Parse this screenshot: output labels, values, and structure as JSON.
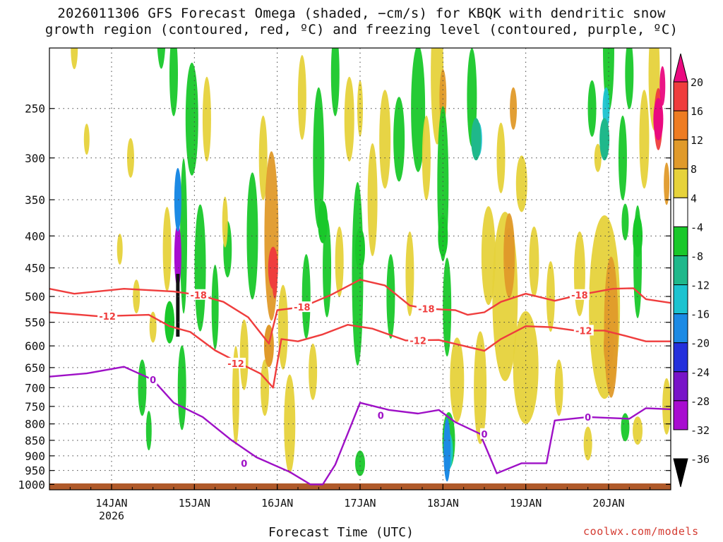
{
  "header": {
    "title_line1": "2026011306 GFS Forecast Omega (shaded, −cm/s) for KBQK with dendritic snow",
    "title_line2": "growth region (contoured, red, ºC) and freezing level (contoured, purple, ºC)"
  },
  "footer": {
    "x_axis_title": "Forecast Time (UTC)",
    "credit": "coolwx.com/models"
  },
  "chart_data": {
    "type": "heatmap",
    "x_axis": {
      "label": "Forecast Time (UTC)",
      "ticks": [
        {
          "value": 0.75,
          "label": "14JAN",
          "sublabel": "2026"
        },
        {
          "value": 1.75,
          "label": "15JAN"
        },
        {
          "value": 2.75,
          "label": "16JAN"
        },
        {
          "value": 3.75,
          "label": "17JAN"
        },
        {
          "value": 4.75,
          "label": "18JAN"
        },
        {
          "value": 5.75,
          "label": "19JAN"
        },
        {
          "value": 6.75,
          "label": "20JAN"
        }
      ],
      "range": [
        0,
        7.5
      ],
      "units": "days since 2026011306"
    },
    "y_axis": {
      "label": "",
      "scale": "log",
      "range": [
        200,
        1020
      ],
      "ticks": [
        250,
        300,
        350,
        400,
        450,
        500,
        550,
        600,
        650,
        700,
        750,
        800,
        850,
        900,
        950,
        1000
      ]
    },
    "grid": true,
    "colorbar": {
      "ticks": [
        "20",
        "16",
        "12",
        "8",
        "4",
        "-4",
        "-8",
        "-12",
        "-16",
        "-20",
        "-24",
        "-28",
        "-32",
        "-36"
      ],
      "bands": [
        {
          "color": "#ea0a80"
        },
        {
          "color": "#ef3d3d"
        },
        {
          "color": "#ee7c22"
        },
        {
          "color": "#e09a2a"
        },
        {
          "color": "#e6d23b"
        },
        {
          "color": "#ffffff"
        },
        {
          "color": "#19c82a"
        },
        {
          "color": "#1fb88b"
        },
        {
          "color": "#1cc3d0"
        },
        {
          "color": "#1c8ae4"
        },
        {
          "color": "#2430dc"
        },
        {
          "color": "#7814c8"
        },
        {
          "color": "#a80cd0"
        },
        {
          "color": "#a8a8a8"
        }
      ]
    },
    "shaded_omega": [
      {
        "x": 0.1,
        "p": 1000,
        "value": 0
      },
      {
        "x": 1.55,
        "p": 430,
        "value": -32
      },
      {
        "x": 1.55,
        "p": 350,
        "value": -20
      },
      {
        "x": 1.45,
        "p": 550,
        "value": -8
      },
      {
        "x": 2.7,
        "p": 450,
        "value": 16
      },
      {
        "x": 2.65,
        "p": 600,
        "value": 8
      },
      {
        "x": 3.3,
        "p": 380,
        "value": -8
      },
      {
        "x": 3.75,
        "p": 420,
        "value": -8
      },
      {
        "x": 4.8,
        "p": 880,
        "value": -20
      },
      {
        "x": 4.75,
        "p": 400,
        "value": -8
      },
      {
        "x": 5.15,
        "p": 280,
        "value": -12
      },
      {
        "x": 5.55,
        "p": 420,
        "value": 8
      },
      {
        "x": 6.7,
        "p": 280,
        "value": -12
      },
      {
        "x": 6.75,
        "p": 600,
        "value": 8
      },
      {
        "x": 7.35,
        "p": 260,
        "value": 20
      },
      {
        "x": 7.1,
        "p": 400,
        "value": -8
      }
    ],
    "dgz_contours": [
      {
        "label": "-18",
        "color": "#ef3d3d",
        "points": [
          [
            0,
            486
          ],
          [
            0.3,
            495
          ],
          [
            0.9,
            486
          ],
          [
            1.5,
            491
          ],
          [
            1.8,
            497
          ],
          [
            2.1,
            510
          ],
          [
            2.4,
            540
          ],
          [
            2.65,
            595
          ],
          [
            2.75,
            526
          ],
          [
            3.05,
            520
          ],
          [
            3.4,
            497
          ],
          [
            3.75,
            470
          ],
          [
            4.05,
            480
          ],
          [
            4.35,
            517
          ],
          [
            4.55,
            523
          ],
          [
            4.9,
            526
          ],
          [
            5.05,
            535
          ],
          [
            5.25,
            530
          ],
          [
            5.45,
            510
          ],
          [
            5.75,
            495
          ],
          [
            6.1,
            508
          ],
          [
            6.4,
            497
          ],
          [
            6.8,
            486
          ],
          [
            7.05,
            485
          ],
          [
            7.2,
            505
          ],
          [
            7.5,
            512
          ]
        ],
        "labels_at": [
          [
            1.8,
            497
          ],
          [
            3.05,
            520
          ],
          [
            4.55,
            523
          ],
          [
            6.4,
            497
          ]
        ]
      },
      {
        "label": "-12",
        "color": "#ef3d3d",
        "points": [
          [
            0,
            530
          ],
          [
            0.6,
            538
          ],
          [
            1.2,
            535
          ],
          [
            1.45,
            558
          ],
          [
            1.7,
            570
          ],
          [
            2.0,
            610
          ],
          [
            2.3,
            640
          ],
          [
            2.55,
            665
          ],
          [
            2.7,
            700
          ],
          [
            2.8,
            585
          ],
          [
            3.0,
            590
          ],
          [
            3.3,
            575
          ],
          [
            3.6,
            555
          ],
          [
            3.9,
            563
          ],
          [
            4.3,
            588
          ],
          [
            4.7,
            587
          ],
          [
            5.0,
            600
          ],
          [
            5.25,
            611
          ],
          [
            5.45,
            585
          ],
          [
            5.75,
            558
          ],
          [
            6.05,
            560
          ],
          [
            6.35,
            567
          ],
          [
            6.7,
            567
          ],
          [
            6.95,
            578
          ],
          [
            7.2,
            590
          ],
          [
            7.5,
            590
          ]
        ],
        "labels_at": [
          [
            0.7,
            538
          ],
          [
            2.25,
            640
          ],
          [
            4.45,
            588
          ],
          [
            6.45,
            567
          ]
        ]
      }
    ],
    "freezing_contours": [
      {
        "label": "0",
        "color": "#9e10c6",
        "points": [
          [
            0,
            672
          ],
          [
            0.45,
            664
          ],
          [
            0.9,
            648
          ],
          [
            1.25,
            680
          ],
          [
            1.5,
            740
          ],
          [
            1.85,
            780
          ],
          [
            2.2,
            850
          ],
          [
            2.5,
            905
          ],
          [
            2.9,
            955
          ],
          [
            3.15,
            1000
          ],
          [
            3.3,
            1000
          ],
          [
            3.45,
            930
          ],
          [
            3.75,
            740
          ],
          [
            4.1,
            760
          ],
          [
            4.45,
            770
          ],
          [
            4.7,
            760
          ],
          [
            4.9,
            795
          ],
          [
            5.2,
            830
          ],
          [
            5.4,
            960
          ],
          [
            5.7,
            925
          ],
          [
            6.0,
            925
          ],
          [
            6.1,
            790
          ],
          [
            6.5,
            780
          ],
          [
            7.0,
            785
          ],
          [
            7.2,
            755
          ],
          [
            7.5,
            758
          ]
        ],
        "labels_at": [
          [
            1.25,
            680
          ],
          [
            2.35,
            925
          ],
          [
            4.0,
            775
          ],
          [
            5.25,
            830
          ],
          [
            6.5,
            780
          ]
        ]
      }
    ]
  }
}
